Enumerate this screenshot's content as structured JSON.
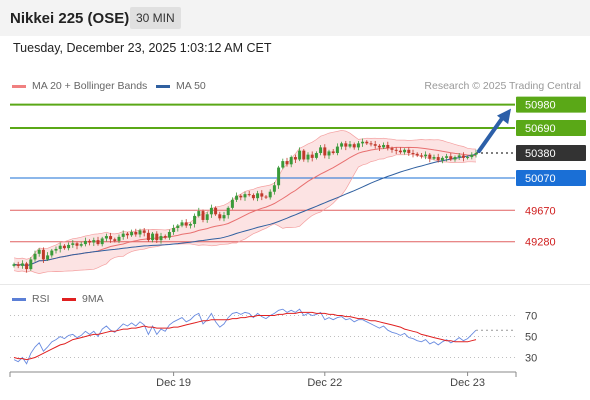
{
  "header": {
    "title": "Nikkei 225 (OSE)",
    "timeframe": "30 MIN"
  },
  "datetime": "Tuesday, December 23, 2025 1:03:12 AM CET",
  "legend": {
    "main": [
      {
        "label": "MA 20 + Bollinger Bands",
        "color": "#f08080"
      },
      {
        "label": "MA 50",
        "color": "#3060a0"
      }
    ],
    "osc": [
      {
        "label": "RSI",
        "color": "#5b7fd6"
      },
      {
        "label": "9MA",
        "color": "#e02020"
      }
    ]
  },
  "credit": "Research © 2025 Trading Central",
  "chart_data": [
    {
      "type": "candlestick",
      "ylim": [
        48780,
        51100
      ],
      "x_labels": [
        "Dec 19",
        "Dec 22",
        "Dec 23"
      ],
      "levels": [
        {
          "value": 50980,
          "label": "50980",
          "kind": "resistance",
          "color": "#5aa817"
        },
        {
          "value": 50690,
          "label": "50690",
          "kind": "resistance",
          "color": "#5aa817"
        },
        {
          "value": 50380,
          "label": "50380",
          "kind": "last",
          "color": "#333333"
        },
        {
          "value": 50070,
          "label": "50070",
          "kind": "pivot",
          "color": "#1a6fd6"
        },
        {
          "value": 49670,
          "label": "49670",
          "kind": "support",
          "color": "#e06060"
        },
        {
          "value": 49280,
          "label": "49280",
          "kind": "support",
          "color": "#e06060"
        }
      ],
      "forecast_arrow": {
        "from": 50380,
        "to": 50980,
        "color": "#2c5fa8"
      },
      "closes": [
        49000,
        48980,
        49010,
        48940,
        49060,
        49130,
        49180,
        49060,
        49110,
        49170,
        49190,
        49230,
        49200,
        49240,
        49260,
        49230,
        49250,
        49290,
        49270,
        49300,
        49250,
        49320,
        49350,
        49310,
        49290,
        49340,
        49380,
        49360,
        49400,
        49370,
        49420,
        49390,
        49300,
        49380,
        49300,
        49350,
        49330,
        49400,
        49450,
        49480,
        49520,
        49480,
        49500,
        49600,
        49660,
        49550,
        49620,
        49700,
        49620,
        49570,
        49610,
        49700,
        49800,
        49850,
        49830,
        49870,
        49860,
        49820,
        49880,
        49840,
        49830,
        49900,
        49980,
        50200,
        50280,
        50240,
        50330,
        50300,
        50410,
        50300,
        50360,
        50320,
        50380,
        50450,
        50350,
        50400,
        50380,
        50460,
        50500,
        50460,
        50490,
        50450,
        50500,
        50520,
        50500,
        50490,
        50470,
        50450,
        50480,
        50440,
        50420,
        50410,
        50390,
        50420,
        50380,
        50370,
        50350,
        50340,
        50360,
        50310,
        50330,
        50290,
        50320,
        50340,
        50300,
        50330,
        50350,
        50320,
        50330,
        50360,
        50380
      ]
    },
    {
      "type": "line",
      "name": "RSI",
      "ylim": [
        20,
        80
      ],
      "y_ticks": [
        30,
        50,
        70
      ],
      "series": [
        {
          "name": "RSI",
          "values": [
            28,
            26,
            30,
            24,
            34,
            40,
            44,
            36,
            40,
            45,
            47,
            50,
            48,
            51,
            52,
            49,
            51,
            55,
            52,
            55,
            50,
            57,
            60,
            56,
            54,
            58,
            62,
            60,
            63,
            60,
            64,
            61,
            52,
            60,
            52,
            57,
            55,
            61,
            64,
            66,
            68,
            64,
            66,
            70,
            72,
            62,
            66,
            72,
            64,
            59,
            62,
            68,
            72,
            73,
            71,
            73,
            72,
            68,
            72,
            69,
            67,
            70,
            72,
            75,
            76,
            73,
            75,
            73,
            76,
            70,
            72,
            70,
            71,
            73,
            66,
            68,
            66,
            68,
            69,
            66,
            67,
            64,
            66,
            66,
            64,
            62,
            60,
            58,
            60,
            56,
            54,
            53,
            51,
            53,
            49,
            48,
            46,
            45,
            47,
            43,
            45,
            42,
            45,
            47,
            44,
            46,
            49,
            46,
            48,
            52,
            56
          ]
        },
        {
          "name": "9MA",
          "values": [
            30,
            29,
            29,
            28,
            29,
            30,
            32,
            34,
            36,
            38,
            40,
            42,
            43,
            45,
            47,
            48,
            49,
            50,
            51,
            52,
            52,
            53,
            54,
            55,
            55,
            56,
            57,
            57,
            58,
            58,
            59,
            60,
            59,
            59,
            58,
            58,
            58,
            58,
            59,
            59,
            60,
            61,
            62,
            63,
            64,
            65,
            65,
            66,
            66,
            66,
            66,
            66,
            67,
            67,
            68,
            68,
            69,
            69,
            70,
            70,
            70,
            70,
            70,
            71,
            71,
            72,
            72,
            72,
            73,
            73,
            73,
            73,
            72,
            72,
            72,
            71,
            71,
            70,
            70,
            69,
            69,
            68,
            67,
            67,
            66,
            65,
            65,
            64,
            63,
            62,
            61,
            60,
            59,
            57,
            56,
            55,
            54,
            52,
            51,
            50,
            49,
            48,
            47,
            46,
            46,
            45,
            45,
            45,
            45,
            46,
            47
          ]
        }
      ]
    }
  ]
}
